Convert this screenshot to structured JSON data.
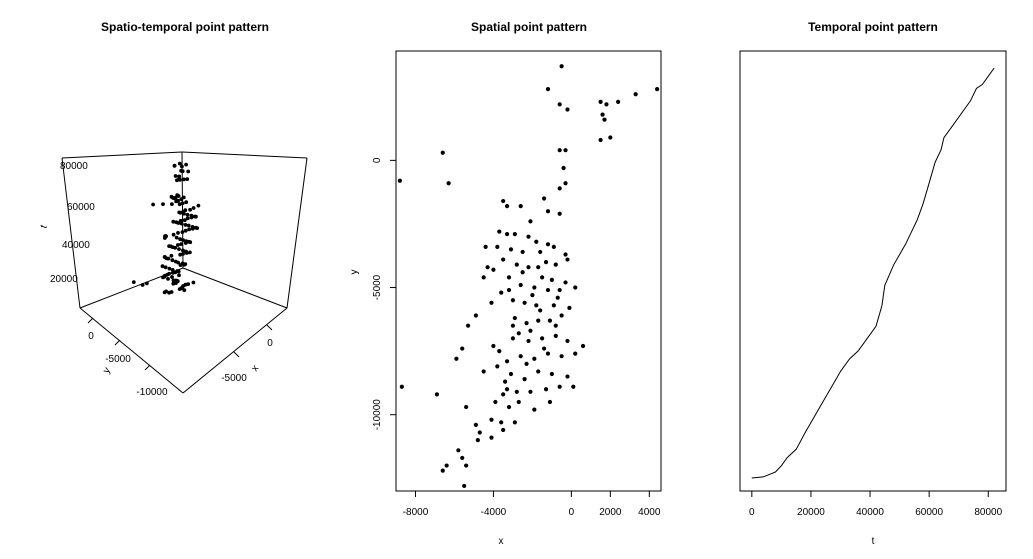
{
  "chart_data": [
    {
      "type": "scatter",
      "title": "Spatio-temporal point pattern",
      "xlabel": "x",
      "ylabel": "y",
      "zlabel": "t",
      "x_ticks": [
        "0",
        "-5000"
      ],
      "y_ticks": [
        "0",
        "-5000",
        "-10000"
      ],
      "z_ticks": [
        "80000",
        "60000",
        "40000",
        "20000"
      ]
    },
    {
      "type": "scatter",
      "title": "Spatial point pattern",
      "xlabel": "x",
      "ylabel": "y",
      "xlim": [
        -9000,
        4600
      ],
      "ylim": [
        -13000,
        4300
      ],
      "x_ticks": [
        -8000,
        -4000,
        0,
        2000,
        4000
      ],
      "y_ticks": [
        0,
        -5000,
        -10000
      ],
      "points": [
        [
          -500,
          3700
        ],
        [
          -1200,
          2800
        ],
        [
          -600,
          2200
        ],
        [
          -200,
          2000
        ],
        [
          2400,
          2300
        ],
        [
          1500,
          2300
        ],
        [
          1800,
          2200
        ],
        [
          1600,
          1800
        ],
        [
          1700,
          1600
        ],
        [
          3300,
          2600
        ],
        [
          4400,
          2800
        ],
        [
          1500,
          800
        ],
        [
          2000,
          900
        ],
        [
          -6600,
          300
        ],
        [
          -600,
          400
        ],
        [
          -300,
          400
        ],
        [
          -400,
          -300
        ],
        [
          -6300,
          -900
        ],
        [
          -8800,
          -800
        ],
        [
          -300,
          -900
        ],
        [
          -600,
          -1100
        ],
        [
          -1400,
          -1500
        ],
        [
          -1200,
          -2000
        ],
        [
          -2600,
          -1800
        ],
        [
          -3500,
          -1600
        ],
        [
          -3300,
          -1800
        ],
        [
          -2100,
          -2400
        ],
        [
          -600,
          -2100
        ],
        [
          -3700,
          -2800
        ],
        [
          -3300,
          -2900
        ],
        [
          -2900,
          -2900
        ],
        [
          -2200,
          -3000
        ],
        [
          -1800,
          -3200
        ],
        [
          -1200,
          -3300
        ],
        [
          -1600,
          -3600
        ],
        [
          -2500,
          -3600
        ],
        [
          -3100,
          -3500
        ],
        [
          -3800,
          -3400
        ],
        [
          -4400,
          -3400
        ],
        [
          -900,
          -3400
        ],
        [
          -300,
          -3700
        ],
        [
          -200,
          -3900
        ],
        [
          -800,
          -4100
        ],
        [
          -1700,
          -4200
        ],
        [
          -2200,
          -4200
        ],
        [
          -2800,
          -4100
        ],
        [
          -3500,
          -3900
        ],
        [
          -4000,
          -4300
        ],
        [
          -4300,
          -4200
        ],
        [
          -4500,
          -4600
        ],
        [
          -3200,
          -4600
        ],
        [
          -1500,
          -4600
        ],
        [
          -1000,
          -4700
        ],
        [
          -300,
          -4800
        ],
        [
          200,
          -5000
        ],
        [
          -600,
          -5100
        ],
        [
          -1200,
          -5100
        ],
        [
          -1900,
          -5000
        ],
        [
          -2600,
          -4900
        ],
        [
          -3200,
          -5100
        ],
        [
          -3600,
          -5200
        ],
        [
          -4100,
          -5600
        ],
        [
          -2400,
          -5600
        ],
        [
          -1800,
          -5700
        ],
        [
          -900,
          -5700
        ],
        [
          -100,
          -5800
        ],
        [
          -500,
          -6100
        ],
        [
          -1100,
          -6300
        ],
        [
          -1700,
          -6300
        ],
        [
          -2300,
          -6400
        ],
        [
          -2900,
          -6200
        ],
        [
          -4900,
          -6100
        ],
        [
          -5300,
          -6500
        ],
        [
          -5900,
          -7800
        ],
        [
          -5600,
          -7400
        ],
        [
          -4000,
          -7300
        ],
        [
          -3000,
          -7000
        ],
        [
          -2200,
          -7100
        ],
        [
          -1500,
          -7000
        ],
        [
          -800,
          -6900
        ],
        [
          -200,
          -7100
        ],
        [
          600,
          -7300
        ],
        [
          200,
          -7600
        ],
        [
          -500,
          -7700
        ],
        [
          -1200,
          -7600
        ],
        [
          -1900,
          -7800
        ],
        [
          -2600,
          -7700
        ],
        [
          -3300,
          -7900
        ],
        [
          -3800,
          -8100
        ],
        [
          -4500,
          -8300
        ],
        [
          -3100,
          -8400
        ],
        [
          -2400,
          -8600
        ],
        [
          -1700,
          -8300
        ],
        [
          -1000,
          -8400
        ],
        [
          -200,
          -8500
        ],
        [
          -600,
          -8900
        ],
        [
          -1300,
          -9000
        ],
        [
          -2100,
          -9100
        ],
        [
          -2800,
          -9100
        ],
        [
          -3500,
          -9200
        ],
        [
          -3900,
          -9500
        ],
        [
          -3200,
          -9700
        ],
        [
          -2700,
          -9500
        ],
        [
          -1900,
          -9800
        ],
        [
          -1100,
          -9500
        ],
        [
          100,
          -8900
        ],
        [
          -8700,
          -8900
        ],
        [
          -6900,
          -9200
        ],
        [
          -5400,
          -9700
        ],
        [
          -4100,
          -10200
        ],
        [
          -3600,
          -10300
        ],
        [
          -2900,
          -10300
        ],
        [
          -4900,
          -10400
        ],
        [
          -4700,
          -10700
        ],
        [
          -4800,
          -11000
        ],
        [
          -4100,
          -10900
        ],
        [
          -3500,
          -10600
        ],
        [
          -5800,
          -11400
        ],
        [
          -5600,
          -11700
        ],
        [
          -6400,
          -12000
        ],
        [
          -6600,
          -12200
        ],
        [
          -5400,
          -12000
        ],
        [
          -5500,
          -12800
        ],
        [
          -3000,
          -6500
        ],
        [
          -2000,
          -5300
        ],
        [
          -2700,
          -6800
        ],
        [
          -1400,
          -7400
        ],
        [
          -2300,
          -8000
        ],
        [
          -3400,
          -8700
        ],
        [
          -3700,
          -7500
        ],
        [
          -1600,
          -5900
        ],
        [
          -800,
          -6500
        ],
        [
          -2500,
          -4400
        ],
        [
          -1300,
          -4000
        ],
        [
          -3000,
          -5500
        ],
        [
          -700,
          -5400
        ],
        [
          -2100,
          -6700
        ],
        [
          -3300,
          -9000
        ]
      ]
    },
    {
      "type": "line",
      "title": "Temporal point pattern",
      "xlabel": "t",
      "ylabel": "",
      "xlim": [
        -4000,
        86000
      ],
      "ylim": [
        0,
        1
      ],
      "x_ticks": [
        0,
        20000,
        40000,
        60000,
        80000
      ],
      "x": [
        0,
        4000,
        8000,
        10000,
        12000,
        15000,
        18000,
        22000,
        26000,
        30000,
        33000,
        36000,
        39000,
        42000,
        44000,
        45000,
        48000,
        52000,
        56000,
        58000,
        60000,
        62000,
        64000,
        65000,
        66000,
        68000,
        70000,
        72000,
        74000,
        76000,
        78000,
        80000,
        82000
      ],
      "y": [
        0.0,
        0.003,
        0.015,
        0.03,
        0.05,
        0.07,
        0.11,
        0.16,
        0.21,
        0.26,
        0.29,
        0.31,
        0.34,
        0.37,
        0.42,
        0.47,
        0.52,
        0.57,
        0.63,
        0.67,
        0.72,
        0.77,
        0.8,
        0.83,
        0.84,
        0.86,
        0.88,
        0.9,
        0.92,
        0.95,
        0.96,
        0.98,
        1.0
      ]
    }
  ]
}
